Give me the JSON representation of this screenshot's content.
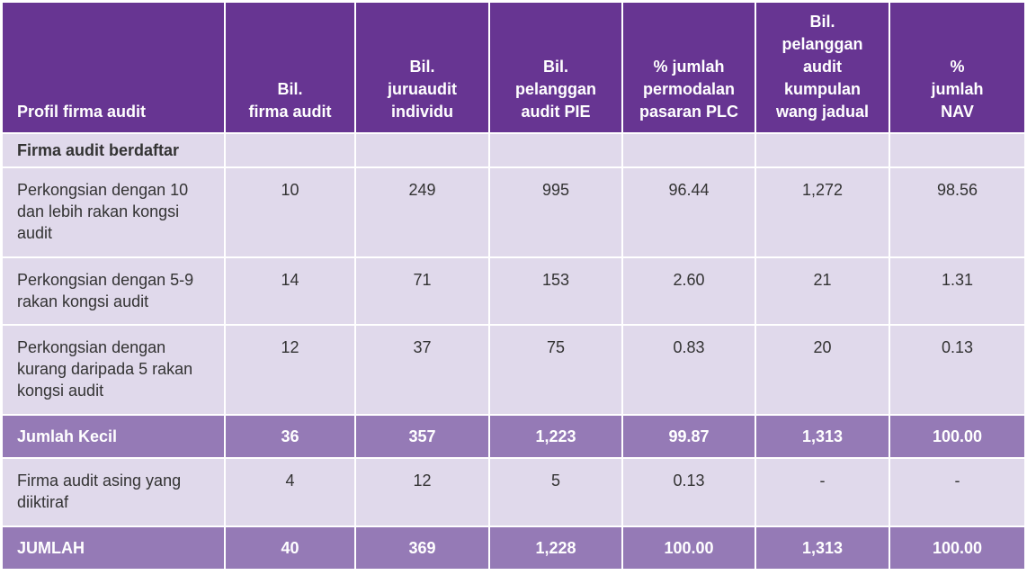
{
  "table": {
    "columns": [
      [
        "Profil firma audit"
      ],
      [
        "Bil.",
        "firma audit"
      ],
      [
        "Bil.",
        "juruaudit",
        "individu"
      ],
      [
        "Bil.",
        "pelanggan",
        "audit PIE"
      ],
      [
        "% jumlah",
        "permodalan",
        "pasaran PLC"
      ],
      [
        "Bil.",
        "pelanggan",
        "audit",
        "kumpulan",
        "wang jadual"
      ],
      [
        "%",
        "jumlah",
        "NAV"
      ]
    ],
    "rows": [
      {
        "label": "Firma audit berdaftar"
      },
      {
        "label": "Perkongsian dengan 10 dan lebih rakan kongsi audit",
        "values": [
          "10",
          "249",
          "995",
          "96.44",
          "1,272",
          "98.56"
        ]
      },
      {
        "label": "Perkongsian dengan 5-9 rakan kongsi audit",
        "values": [
          "14",
          "71",
          "153",
          "2.60",
          "21",
          "1.31"
        ]
      },
      {
        "label": "Perkongsian dengan kurang daripada 5 rakan kongsi audit",
        "values": [
          "12",
          "37",
          "75",
          "0.83",
          "20",
          "0.13"
        ]
      },
      {
        "label": "Jumlah Kecil",
        "values": [
          "36",
          "357",
          "1,223",
          "99.87",
          "1,313",
          "100.00"
        ]
      },
      {
        "label": "Firma audit asing yang diiktiraf",
        "values": [
          "4",
          "12",
          "5",
          "0.13",
          "-",
          "-"
        ]
      },
      {
        "label": "JUMLAH",
        "values": [
          "40",
          "369",
          "1,228",
          "100.00",
          "1,313",
          "100.00"
        ]
      }
    ]
  }
}
